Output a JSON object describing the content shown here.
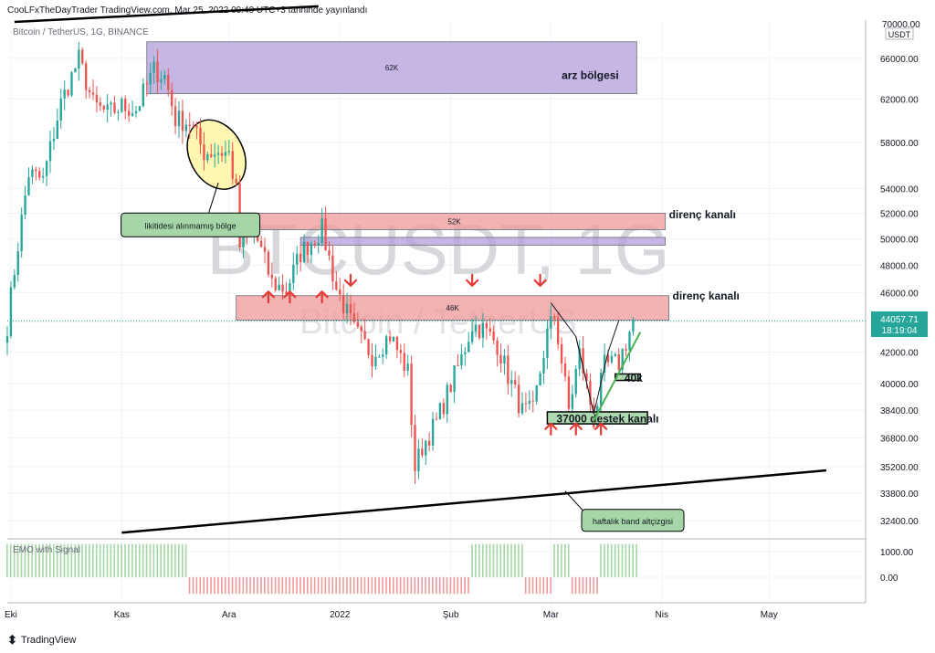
{
  "header": {
    "published": "CooLFxTheDayTrader TradingView.com, Mar 25, 2022 09:40 UTC+3 tarihinde yayınlandı"
  },
  "symbol_line": "Bitcoin / TetherUS, 1G, BINANCE",
  "watermark": {
    "ticker": "BTCUSDT, 1G",
    "name": "Bitcoin / TetherUS"
  },
  "price_axis": {
    "top_label": "70000.00",
    "currency": "USDT",
    "last_price": "44057.71",
    "countdown": "18:19:04"
  },
  "oscillator": {
    "label": "EMO with Signal",
    "ticks": [
      "1000.00",
      "0.00"
    ]
  },
  "footer": {
    "brand": "TradingView"
  },
  "colors": {
    "up": "#26a69a",
    "down": "#ef5350",
    "supply_zone": "#b39ddb",
    "resistance_zone": "#ef9a9a",
    "support_box": "#a5d6a7",
    "ellipse": "#fff59d",
    "arrow": "#e53935",
    "osc_up": "#a5d6a7",
    "osc_down": "#ef9a9a"
  },
  "chart_data": {
    "type": "candlestick",
    "title": "",
    "xlabel": "",
    "ylabel": "",
    "ylim": [
      31500,
      70000
    ],
    "y_scale": "log",
    "y_ticks": [
      66000,
      62000,
      58000,
      54000,
      52000,
      50000,
      48000,
      46000,
      44000,
      42000,
      40000,
      38400,
      36800,
      35200,
      33800,
      32400
    ],
    "y_tick_labels": [
      "66000.00",
      "62000.00",
      "58000.00",
      "54000.00",
      "52000.00",
      "50000.00",
      "48000.00",
      "46000.00",
      "44000.00",
      "42000.00",
      "40000.00",
      "38400.00",
      "36800.00",
      "35200.00",
      "33800.00",
      "32400.00"
    ],
    "x_date_range": [
      "2021-09-30",
      "2022-05-28"
    ],
    "x_ticks": [
      {
        "date": "2021-10-01",
        "label": "Eki"
      },
      {
        "date": "2021-11-01",
        "label": "Kas"
      },
      {
        "date": "2021-12-01",
        "label": "Ara"
      },
      {
        "date": "2022-01-01",
        "label": "2022"
      },
      {
        "date": "2022-02-01",
        "label": "Şub"
      },
      {
        "date": "2022-03-01",
        "label": "Mar"
      },
      {
        "date": "2022-04-01",
        "label": "Nis"
      },
      {
        "date": "2022-05-01",
        "label": "May"
      }
    ],
    "close_path": [
      [
        "2021-09-30",
        43800
      ],
      [
        "2021-10-06",
        55300
      ],
      [
        "2021-10-10",
        54700
      ],
      [
        "2021-10-15",
        61600
      ],
      [
        "2021-10-20",
        65900
      ],
      [
        "2021-10-24",
        61500
      ],
      [
        "2021-10-28",
        60600
      ],
      [
        "2021-11-01",
        61300
      ],
      [
        "2021-11-05",
        61000
      ],
      [
        "2021-11-10",
        64800
      ],
      [
        "2021-11-13",
        64200
      ],
      [
        "2021-11-16",
        60100
      ],
      [
        "2021-11-20",
        59800
      ],
      [
        "2021-11-24",
        57100
      ],
      [
        "2021-11-28",
        57200
      ],
      [
        "2021-12-01",
        57000
      ],
      [
        "2021-12-03",
        53700
      ],
      [
        "2021-12-04",
        49400
      ],
      [
        "2021-12-08",
        50600
      ],
      [
        "2021-12-13",
        46700
      ],
      [
        "2021-12-17",
        46200
      ],
      [
        "2021-12-21",
        48900
      ],
      [
        "2021-12-27",
        50700
      ],
      [
        "2021-12-31",
        46300
      ],
      [
        "2022-01-05",
        43400
      ],
      [
        "2022-01-10",
        41800
      ],
      [
        "2022-01-15",
        43100
      ],
      [
        "2022-01-20",
        40700
      ],
      [
        "2022-01-22",
        35100
      ],
      [
        "2022-01-24",
        36300
      ],
      [
        "2022-01-28",
        37700
      ],
      [
        "2022-02-04",
        41600
      ],
      [
        "2022-02-07",
        43800
      ],
      [
        "2022-02-10",
        43500
      ],
      [
        "2022-02-14",
        42500
      ],
      [
        "2022-02-17",
        40500
      ],
      [
        "2022-02-21",
        38300
      ],
      [
        "2022-02-24",
        38300
      ],
      [
        "2022-02-28",
        43200
      ],
      [
        "2022-03-02",
        44400
      ],
      [
        "2022-03-06",
        38400
      ],
      [
        "2022-03-09",
        41900
      ],
      [
        "2022-03-13",
        37800
      ],
      [
        "2022-03-16",
        41100
      ],
      [
        "2022-03-20",
        41300
      ],
      [
        "2022-03-24",
        44000
      ]
    ],
    "oscillator": {
      "label": "EMO with Signal",
      "ylim": [
        -1000,
        1500
      ],
      "positive_spans": [
        [
          "2021-09-30",
          "2021-11-19"
        ],
        [
          "2022-02-07",
          "2022-02-21"
        ],
        [
          "2022-03-02",
          "2022-03-06"
        ],
        [
          "2022-03-15",
          "2022-03-25"
        ]
      ],
      "negative_spans": [
        [
          "2021-11-20",
          "2022-02-06"
        ],
        [
          "2022-02-22",
          "2022-03-01"
        ],
        [
          "2022-03-07",
          "2022-03-14"
        ]
      ]
    },
    "annotations": [
      {
        "kind": "zone",
        "label": "62K",
        "y": [
          62500,
          67700
        ],
        "x": [
          "2021-11-08",
          "2022-03-25"
        ],
        "color": "#b39ddb"
      },
      {
        "kind": "text",
        "text": "arz bölgesi",
        "y": 64300,
        "x": "2022-03-04"
      },
      {
        "kind": "ellipse",
        "y": [
          53800,
          60200
        ],
        "x": [
          "2021-11-20",
          "2021-12-05"
        ],
        "color": "#fff59d"
      },
      {
        "kind": "callout",
        "text": "likitidesi alınmamış bölge",
        "y": 51000,
        "x": "2021-11-10"
      },
      {
        "kind": "zone",
        "label": "52K",
        "y": [
          50700,
          52000
        ],
        "x": [
          "2021-12-05",
          "2022-04-02"
        ],
        "color": "#ef9a9a"
      },
      {
        "kind": "text",
        "text": "direnç kanalı",
        "y": 51900,
        "x": "2022-04-03"
      },
      {
        "kind": "zone",
        "label": "",
        "y": [
          49500,
          50100
        ],
        "x": [
          "2021-12-21",
          "2022-04-02"
        ],
        "color": "#b39ddb"
      },
      {
        "kind": "zone",
        "label": "46K",
        "y": [
          44100,
          45800
        ],
        "x": [
          "2021-12-03",
          "2022-04-03"
        ],
        "color": "#ef9a9a"
      },
      {
        "kind": "text",
        "text": "direnç kanalı",
        "y": 45800,
        "x": "2022-04-04"
      },
      {
        "kind": "zone",
        "label": "40k",
        "y": [
          40200,
          40600
        ],
        "x": [
          "2022-03-19",
          "2022-03-26"
        ],
        "color": "#a5d6a7"
      },
      {
        "kind": "zone",
        "label": "37000 destek kanalı",
        "y": [
          37600,
          38300
        ],
        "x": [
          "2022-02-28",
          "2022-03-28"
        ],
        "color": "#a5d6a7"
      },
      {
        "kind": "trendline",
        "text": "",
        "from": [
          "2021-10-02",
          69800
        ],
        "to": [
          "2021-12-26",
          71500
        ]
      },
      {
        "kind": "trendline",
        "text": "haftalık band altçizgisi",
        "from": [
          "2021-11-01",
          31800
        ],
        "to": [
          "2022-05-17",
          35000
        ]
      },
      {
        "kind": "trendline",
        "text": "",
        "from": [
          "2022-03-13",
          37800
        ],
        "to": [
          "2022-03-26",
          43300
        ]
      },
      {
        "kind": "arrows_up",
        "points": [
          [
            "2021-12-12",
            45700
          ],
          [
            "2021-12-18",
            45700
          ],
          [
            "2021-12-27",
            45700
          ],
          [
            "2022-03-01",
            37300
          ],
          [
            "2022-03-08",
            37300
          ],
          [
            "2022-03-15",
            37300
          ]
        ]
      },
      {
        "kind": "arrows_down",
        "points": [
          [
            "2022-01-04",
            46900
          ],
          [
            "2022-02-07",
            46900
          ],
          [
            "2022-02-26",
            46900
          ]
        ]
      }
    ]
  }
}
